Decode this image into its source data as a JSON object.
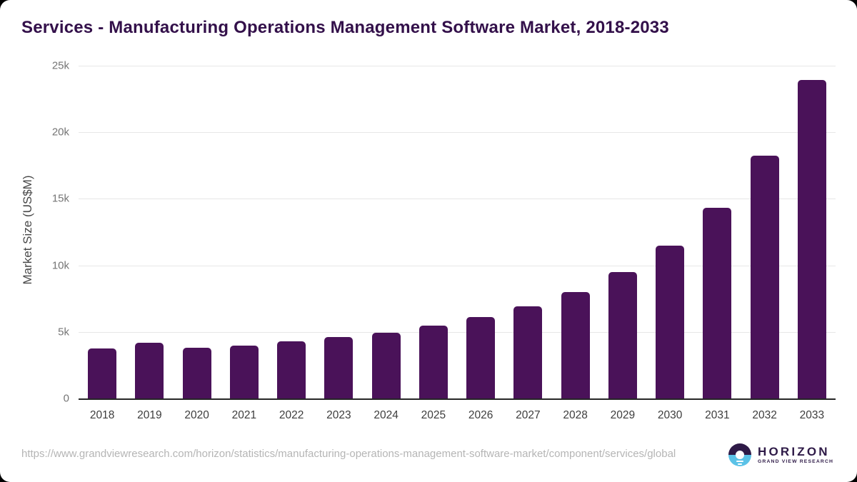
{
  "chart_data": {
    "type": "bar",
    "title": "Services - Manufacturing Operations Management Software Market, 2018-2033",
    "xlabel": "",
    "ylabel": "Market Size (US$M)",
    "categories": [
      "2018",
      "2019",
      "2020",
      "2021",
      "2022",
      "2023",
      "2024",
      "2025",
      "2026",
      "2027",
      "2028",
      "2029",
      "2030",
      "2031",
      "2032",
      "2033"
    ],
    "values": [
      3750,
      4200,
      3800,
      3950,
      4300,
      4600,
      4950,
      5450,
      6100,
      6900,
      8000,
      9500,
      11500,
      14350,
      18250,
      23950
    ],
    "ylim": [
      0,
      25000
    ],
    "ytick_values": [
      0,
      5000,
      10000,
      15000,
      20000,
      25000
    ],
    "ytick_labels": [
      "0",
      "5k",
      "10k",
      "15k",
      "20k",
      "25k"
    ],
    "grid": "horizontal",
    "legend": "none",
    "bar_color": "#4a1259"
  },
  "colors": {
    "title_text": "#33104a",
    "bar_fill": "#4a1259",
    "gridline": "#e7e7e7",
    "axis_line": "#262626",
    "ytick_text": "#757575",
    "xtick_text": "#3d3d3d",
    "source_text": "#b5b5b5",
    "logo_purple": "#2e1a47",
    "logo_blue": "#5bc2e7",
    "card_background": "#ffffff",
    "outer_background": "#000000"
  },
  "footer": {
    "source_url": "https://www.grandviewresearch.com/horizon/statistics/manufacturing-operations-management-software-market/component/services/global",
    "logo": {
      "name": "HORIZON",
      "subtitle": "GRAND VIEW RESEARCH"
    }
  }
}
